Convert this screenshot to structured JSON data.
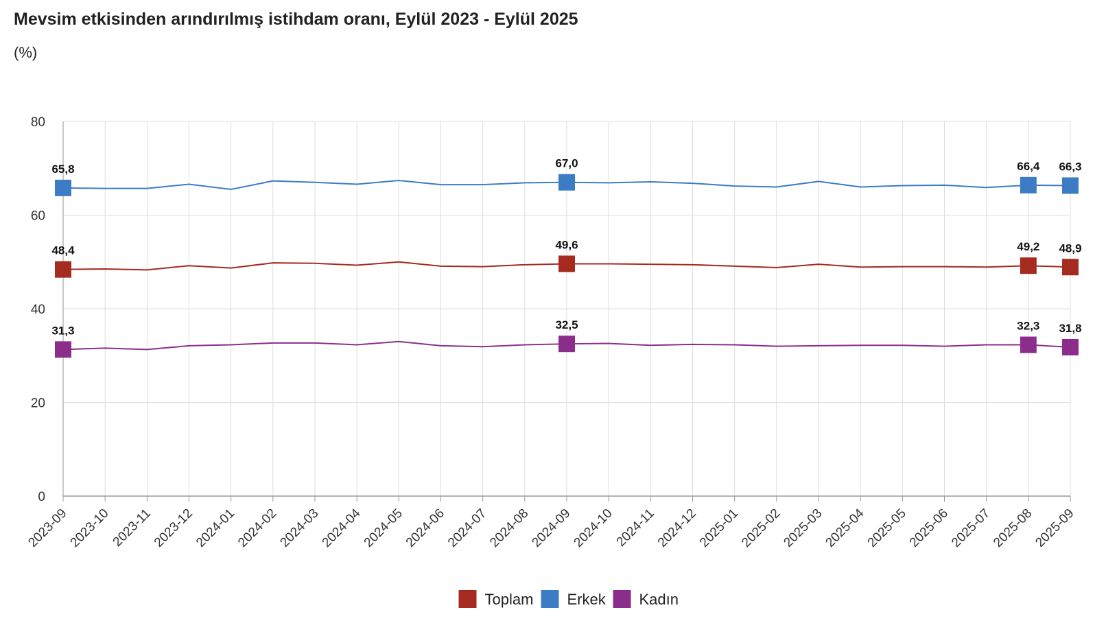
{
  "title": "Mevsim etkisinden arındırılmış istihdam oranı, Eylül 2023 - Eylül 2025",
  "unit": "(%)",
  "chart_data": {
    "type": "line",
    "title": "Mevsim etkisinden arındırılmış istihdam oranı, Eylül 2023 - Eylül 2025",
    "ylabel": "(%)",
    "xlabel": "",
    "ylim": [
      0,
      80
    ],
    "yticks": [
      0,
      20,
      40,
      60,
      80
    ],
    "grid": true,
    "legend": "bottom",
    "categories": [
      "2023-09",
      "2023-10",
      "2023-11",
      "2023-12",
      "2024-01",
      "2024-02",
      "2024-03",
      "2024-04",
      "2024-05",
      "2024-06",
      "2024-07",
      "2024-08",
      "2024-09",
      "2024-10",
      "2024-11",
      "2024-12",
      "2025-01",
      "2025-02",
      "2025-03",
      "2025-04",
      "2025-05",
      "2025-06",
      "2025-07",
      "2025-08",
      "2025-09"
    ],
    "labeled_points": [
      0,
      12,
      23,
      24
    ],
    "series": [
      {
        "name": "Toplam",
        "color": "#a52a1f",
        "values": [
          48.4,
          48.5,
          48.3,
          49.2,
          48.7,
          49.8,
          49.7,
          49.3,
          50.0,
          49.1,
          49.0,
          49.4,
          49.6,
          49.6,
          49.5,
          49.4,
          49.1,
          48.8,
          49.5,
          48.9,
          49.0,
          49.0,
          48.9,
          49.2,
          48.9
        ],
        "labels": [
          "48,4",
          "49,6",
          "49,2",
          "48,9"
        ]
      },
      {
        "name": "Erkek",
        "color": "#3b7cc4",
        "values": [
          65.8,
          65.7,
          65.7,
          66.6,
          65.5,
          67.3,
          67.0,
          66.6,
          67.4,
          66.5,
          66.5,
          66.9,
          67.0,
          66.9,
          67.1,
          66.8,
          66.2,
          66.0,
          67.2,
          66.0,
          66.3,
          66.4,
          65.9,
          66.4,
          66.3
        ],
        "labels": [
          "65,8",
          "67,0",
          "66,4",
          "66,3"
        ]
      },
      {
        "name": "Kadın",
        "color": "#8b2e8b",
        "values": [
          31.3,
          31.6,
          31.3,
          32.1,
          32.3,
          32.7,
          32.7,
          32.3,
          33.0,
          32.1,
          31.9,
          32.3,
          32.5,
          32.6,
          32.2,
          32.4,
          32.3,
          32.0,
          32.1,
          32.2,
          32.2,
          32.0,
          32.3,
          32.3,
          31.8
        ],
        "labels": [
          "31,3",
          "32,5",
          "32,3",
          "31,8"
        ]
      }
    ]
  }
}
